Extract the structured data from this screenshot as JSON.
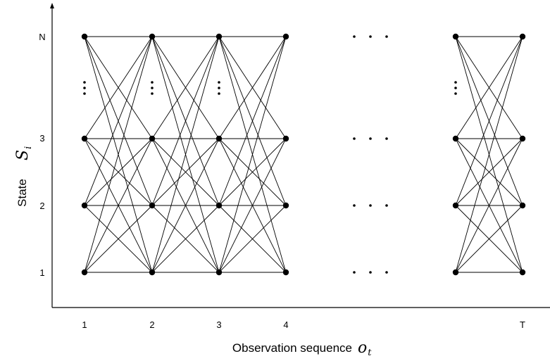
{
  "diagram": {
    "x_axis": {
      "label": "Observation sequence",
      "symbol": "o",
      "subscript": "t",
      "ticks": [
        "1",
        "2",
        "3",
        "4",
        "T"
      ]
    },
    "y_axis": {
      "label": "State",
      "symbol": "S",
      "subscript": "i",
      "ticks": [
        "1",
        "2",
        "3",
        "N"
      ]
    },
    "trellis": {
      "connectivity": "fully-connected",
      "time_columns": [
        "1",
        "2",
        "3",
        "4",
        "T"
      ],
      "states": [
        "1",
        "2",
        "3",
        "N"
      ],
      "elided_states_marker": "vertical-ellipsis",
      "elided_time_marker": "horizontal-ellipsis"
    },
    "colors": {
      "line": "#000000",
      "node": "#000000",
      "background": "#ffffff"
    }
  }
}
